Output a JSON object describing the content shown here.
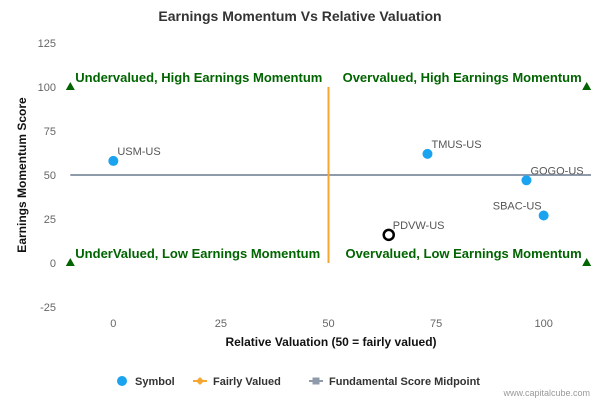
{
  "chart_data": {
    "type": "scatter",
    "title": "Earnings Momentum Vs Relative Valuation",
    "xlabel": "Relative Valuation (50 = fairly valued)",
    "ylabel": "Earnings Momentum Score",
    "xlim": [
      -11,
      111
    ],
    "ylim": [
      -25,
      125
    ],
    "x_ticks": [
      0,
      25,
      50,
      75,
      100
    ],
    "y_ticks": [
      -25,
      0,
      25,
      50,
      75,
      100,
      125
    ],
    "fair_value_x": 50,
    "midpoint_y": 50,
    "quadrant_labels": [
      {
        "text": "Undervalued, High Earnings Momentum",
        "x": -10,
        "y": 100,
        "anchor": "start"
      },
      {
        "text": "Overvalued, High Earnings Momentum",
        "x": 110,
        "y": 100,
        "anchor": "end"
      },
      {
        "text": "UnderValued, Low Earnings Momentum",
        "x": -10,
        "y": 0,
        "anchor": "start"
      },
      {
        "text": "Overvalued, Low Earnings Momentum",
        "x": 110,
        "y": 0,
        "anchor": "end"
      }
    ],
    "corner_markers": [
      {
        "x": -10,
        "y": 100
      },
      {
        "x": 110,
        "y": 100
      },
      {
        "x": -10,
        "y": 0
      },
      {
        "x": 110,
        "y": 0
      }
    ],
    "points": [
      {
        "label": "USM-US",
        "x": 0,
        "y": 58,
        "label_pos": "right"
      },
      {
        "label": "TMUS-US",
        "x": 73,
        "y": 62,
        "label_pos": "right"
      },
      {
        "label": "GOGO-US",
        "x": 96,
        "y": 47,
        "label_pos": "right"
      },
      {
        "label": "SBAC-US",
        "x": 100,
        "y": 27,
        "label_pos": "left"
      },
      {
        "label": "PDVW-US",
        "x": 64,
        "y": 16,
        "label_pos": "right",
        "highlight": true
      }
    ],
    "legend": [
      {
        "name": "Symbol",
        "type": "circle",
        "color": "#1aa3ef"
      },
      {
        "name": "Fairly Valued",
        "type": "line-diamond",
        "color": "#f7a731"
      },
      {
        "name": "Fundamental Score Midpoint",
        "type": "line-square",
        "color": "#8f9bab"
      }
    ],
    "colors": {
      "point": "#1aa3ef",
      "highlight_stroke": "#000000",
      "fair_line": "#f7a731",
      "mid_line": "#8f9bab",
      "quadrant_text": "#006400",
      "marker": "#006400"
    },
    "credit": "www.capitalcube.com"
  }
}
